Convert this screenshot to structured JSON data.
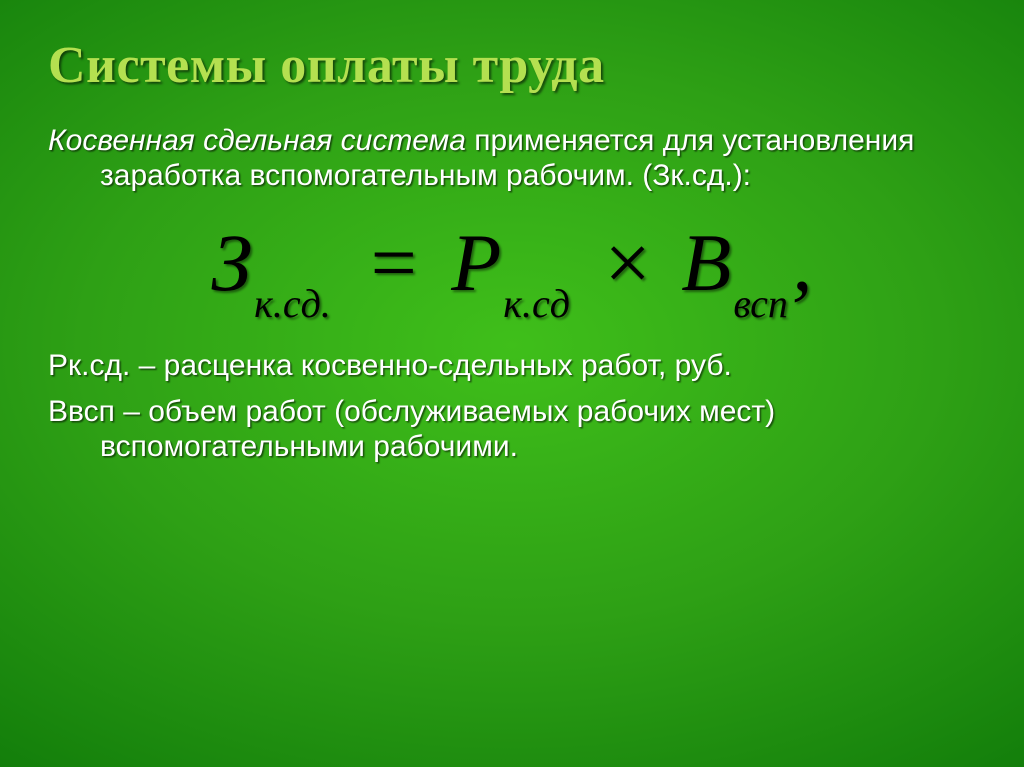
{
  "title": "Системы оплаты труда",
  "intro_italic": "Косвенная сдельная система",
  "intro_rest": " применяется для установления заработка вспомогательным рабочим. (Зк.сд.):",
  "formula": {
    "lhs_main": "З",
    "lhs_sub": "к.сд.",
    "eq": "=",
    "r1_main": "Р",
    "r1_sub": "к.сд",
    "times": "×",
    "r2_main": "В",
    "r2_sub": "всп",
    "tail": ","
  },
  "def1": "Рк.сд. – расценка косвенно-сдельных работ, руб.",
  "def2": "Ввсп – объем работ  (обслуживаемых рабочих мест) вспомогательными рабочими.",
  "colors": {
    "title": "#b4e050",
    "text": "#ffffff",
    "formula": "#000000"
  }
}
